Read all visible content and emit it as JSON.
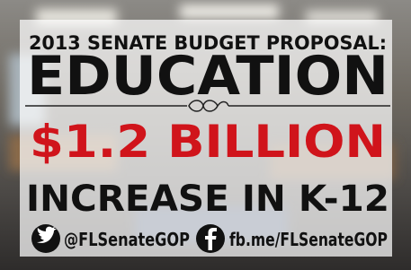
{
  "title_line": "2013 SENATE BUDGET PROPOSAL:",
  "heading": "EDUCATION",
  "amount": "$1.2 BILLION",
  "subtitle": "INCREASE IN K-12",
  "social": {
    "twitter": "@FLSenateGOP",
    "facebook": "fb.me/FLSenateGOP"
  }
}
